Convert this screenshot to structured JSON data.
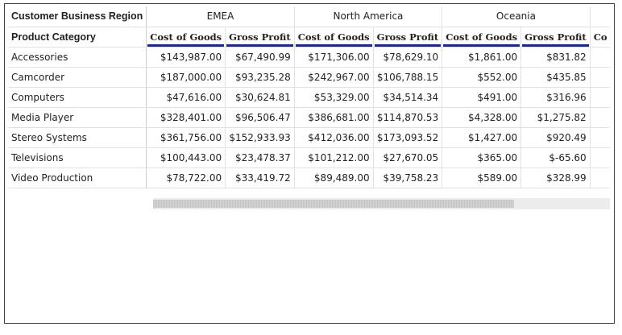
{
  "pivot": {
    "corner_column_label": "Customer Business Region",
    "corner_row_label": "Product Category",
    "regions": [
      "EMEA",
      "North America",
      "Oceania"
    ],
    "measures": [
      "Cost of Goods",
      "Gross Profit"
    ],
    "truncated_next_header": "Co",
    "rows": [
      {
        "category": "Accessories",
        "values": [
          "$143,987.00",
          "$67,490.99",
          "$171,306.00",
          "$78,629.10",
          "$1,861.00",
          "$831.82"
        ]
      },
      {
        "category": "Camcorder",
        "values": [
          "$187,000.00",
          "$93,235.28",
          "$242,967.00",
          "$106,788.15",
          "$552.00",
          "$435.85"
        ]
      },
      {
        "category": "Computers",
        "values": [
          "$47,616.00",
          "$30,624.81",
          "$53,329.00",
          "$34,514.34",
          "$491.00",
          "$316.96"
        ]
      },
      {
        "category": "Media Player",
        "values": [
          "$328,401.00",
          "$96,506.47",
          "$386,681.00",
          "$114,870.53",
          "$4,328.00",
          "$1,275.82"
        ]
      },
      {
        "category": "Stereo Systems",
        "values": [
          "$361,756.00",
          "$152,933.93",
          "$412,036.00",
          "$173,093.52",
          "$1,427.00",
          "$920.49"
        ]
      },
      {
        "category": "Televisions",
        "values": [
          "$100,443.00",
          "$23,478.37",
          "$101,212.00",
          "$27,670.05",
          "$365.00",
          "$-65.60"
        ]
      },
      {
        "category": "Video Production",
        "values": [
          "$78,722.00",
          "$33,419.72",
          "$89,489.00",
          "$39,758.23",
          "$589.00",
          "$328.99"
        ]
      }
    ],
    "scroll_position_fraction": 0.0,
    "scroll_visible_fraction": 0.79
  },
  "colors": {
    "measure_underline": "#1a1adb",
    "grid_line": "#e2e2e2",
    "frame_border": "#404040"
  }
}
